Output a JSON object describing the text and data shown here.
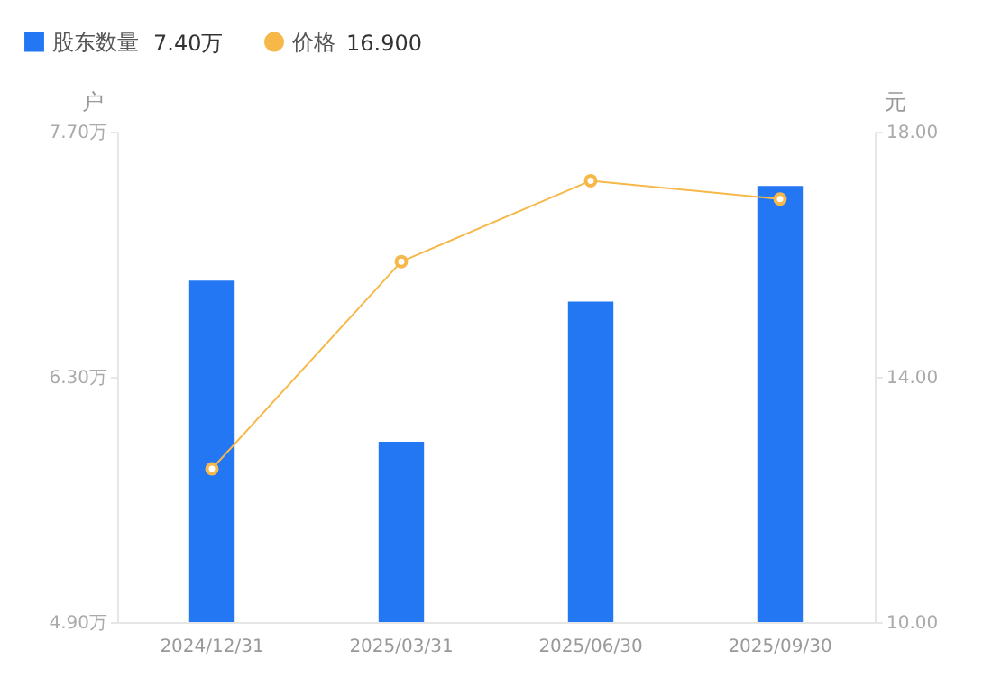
{
  "chart_data": {
    "type": "bar",
    "categories": [
      "2024/12/31",
      "2025/03/31",
      "2025/06/30",
      "2025/09/30"
    ],
    "series": [
      {
        "name": "股东数量",
        "color": "#2477f3",
        "values": [
          6.85,
          5.93,
          6.73,
          7.39
        ]
      },
      {
        "name": "价格",
        "type": "line",
        "axis": "y2",
        "color": "#f7b84a",
        "values": [
          12.5,
          15.88,
          17.2,
          16.9
        ]
      }
    ],
    "annotations": [
      "7.40万",
      "16.900"
    ],
    "ylabel": "户",
    "y2label": "元",
    "ylim": [
      4.9,
      7.7
    ],
    "yticks": [
      {
        "value": 4.9,
        "label": "4.90万"
      },
      {
        "value": 6.3,
        "label": "6.30万"
      },
      {
        "value": 7.7,
        "label": "7.70万"
      }
    ],
    "y2lim": [
      10,
      18
    ],
    "y2ticks": [
      {
        "value": 10,
        "label": "10.00"
      },
      {
        "value": 14,
        "label": "14.00"
      },
      {
        "value": 18,
        "label": "18.00"
      }
    ],
    "legend": "top left",
    "marker": "circle",
    "grid": false
  }
}
